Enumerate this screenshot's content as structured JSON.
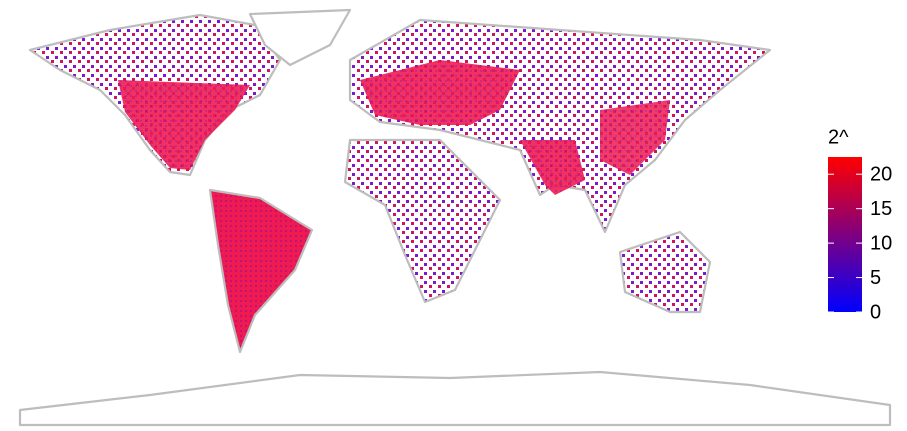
{
  "legend": {
    "title": "2^",
    "range": [
      0,
      22.5
    ],
    "ticks": [
      0,
      5,
      10,
      15,
      20
    ],
    "colors": [
      "#0000ff",
      "#ff0000"
    ]
  }
}
